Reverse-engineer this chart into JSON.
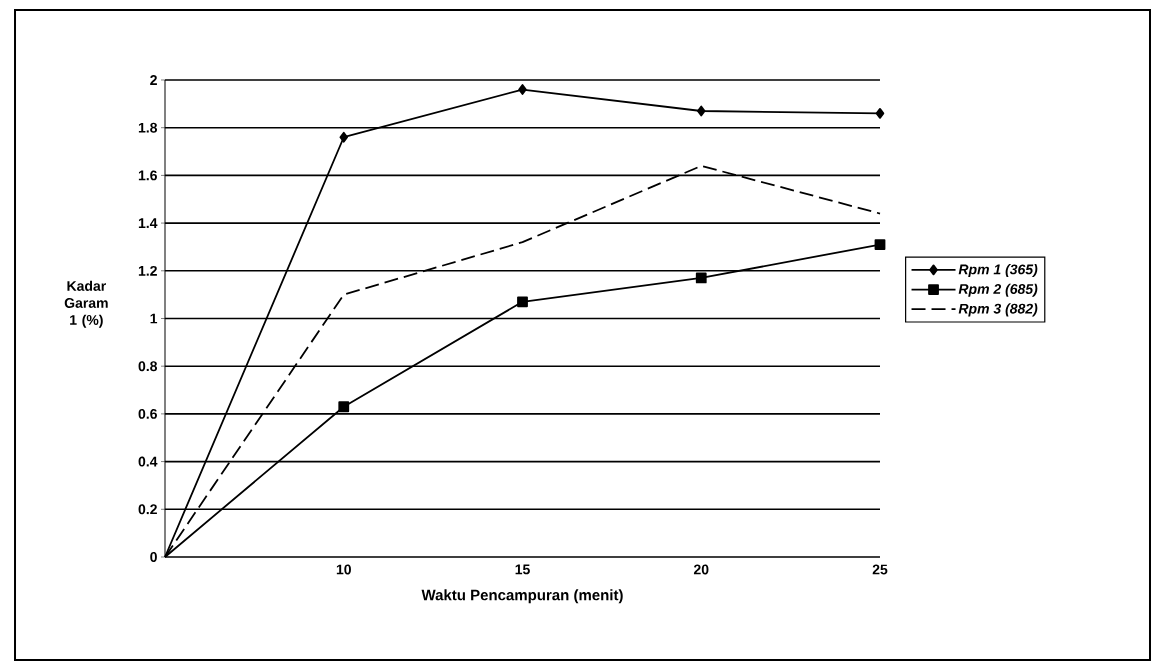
{
  "chart_data": {
    "type": "line",
    "xlabel": "Waktu Pencampuran (menit)",
    "ylabel": "Kadar Garam 1 (%)",
    "categories": [
      null,
      "10",
      "15",
      "20",
      "25"
    ],
    "series": [
      {
        "name": "Rpm 1 (365)",
        "color": "#000000",
        "marker": "diamond",
        "line_style": "solid",
        "values": [
          0,
          1.76,
          1.96,
          1.87,
          1.86
        ]
      },
      {
        "name": "Rpm 2 (685)",
        "color": "#000000",
        "marker": "square",
        "line_style": "solid",
        "values": [
          0,
          0.63,
          1.07,
          1.17,
          1.31
        ]
      },
      {
        "name": "Rpm 3 (882)",
        "color": "#000000",
        "marker": "none",
        "line_style": "dashed",
        "values": [
          0,
          1.1,
          1.32,
          1.64,
          1.44
        ]
      }
    ],
    "ylim": [
      0,
      2
    ],
    "yticks": [
      0,
      0.2,
      0.4,
      0.6,
      0.8,
      1,
      1.2,
      1.4,
      1.6,
      1.8,
      2
    ],
    "grid": "y",
    "legend": "right"
  }
}
